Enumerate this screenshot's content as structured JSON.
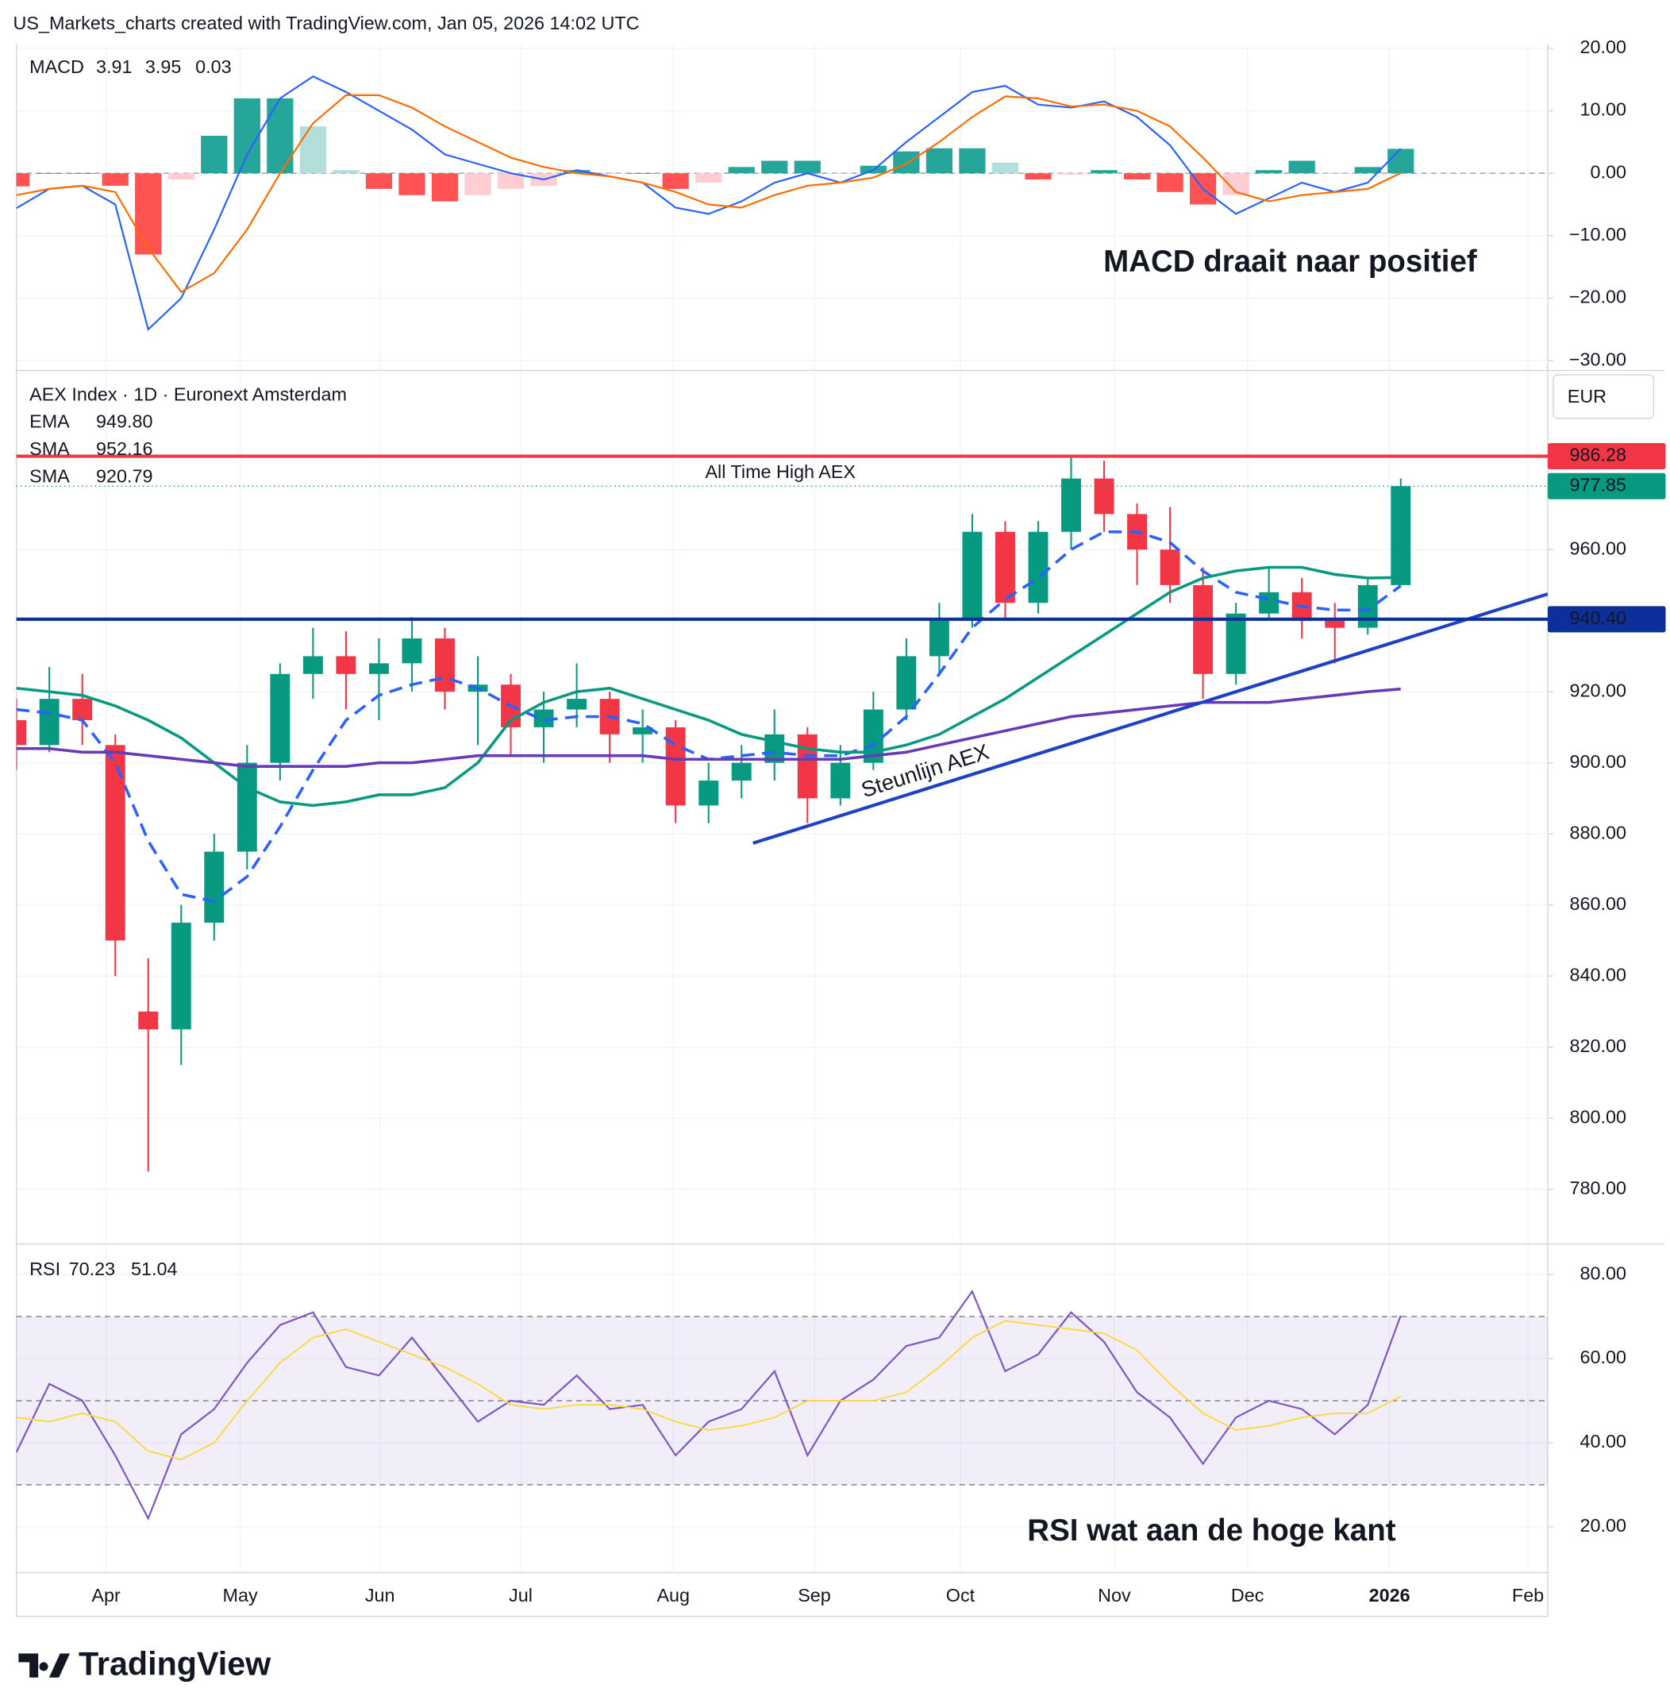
{
  "header": "US_Markets_charts created with TradingView.com, Jan 05, 2026 14:02 UTC",
  "logo": "TradingView",
  "chart_data": [
    {
      "type": "macd",
      "title": "MACD",
      "x": [
        0,
        1,
        2,
        3,
        4,
        5,
        6,
        7,
        8,
        9,
        10,
        11,
        12,
        13,
        14,
        15,
        16,
        17,
        18,
        19,
        20,
        21,
        22,
        23,
        24,
        25,
        26,
        27,
        28,
        29,
        30,
        31,
        32,
        33,
        34,
        35,
        36,
        37,
        38,
        39,
        40,
        41,
        42
      ],
      "xlim": [
        0,
        46.46
      ],
      "ylim": [
        -31.4,
        20.7
      ],
      "yticks": [
        {
          "value": 20,
          "label": "20.00"
        },
        {
          "value": 10,
          "label": "10.00"
        },
        {
          "value": 0,
          "label": "0.00"
        },
        {
          "value": -10,
          "label": "−10.00"
        },
        {
          "value": -20,
          "label": "−20.00"
        },
        {
          "value": -30,
          "label": "−30.00"
        }
      ],
      "baseline": 0,
      "histogram": {
        "values": [
          -2.1,
          0,
          0,
          -2,
          -13,
          -1,
          6,
          12,
          12,
          7.5,
          0.5,
          -2.5,
          -3.5,
          -4.5,
          -3.5,
          -2.5,
          -2,
          0.5,
          0,
          0,
          -2.5,
          -1.5,
          1,
          2,
          2,
          0,
          1.2,
          3.5,
          4,
          4,
          1.7,
          -1,
          -0.2,
          0.5,
          -1,
          -3,
          -5,
          -3.5,
          0.5,
          2,
          0,
          1,
          3.91
        ],
        "colors": [
          "#26a69a",
          "#b2dfdb",
          "#ff5252",
          "#ffcdd2"
        ]
      },
      "series": [
        {
          "color": "#2962ff",
          "values": [
            -5.6,
            -2.5,
            -2,
            -5,
            -25,
            -20,
            -9,
            3,
            12,
            15.5,
            13,
            10,
            7,
            3,
            1.5,
            0,
            -1,
            0.5,
            -0.5,
            -1.5,
            -5.5,
            -6.5,
            -4.5,
            -1.5,
            0,
            -1.5,
            0.5,
            5,
            9,
            13,
            14,
            11,
            10.5,
            11.5,
            9,
            4.5,
            -2.5,
            -6.5,
            -4,
            -1.5,
            -3,
            -1.5,
            3.95
          ]
        },
        {
          "color": "#ff6d00",
          "values": [
            -3.5,
            -2.5,
            -2,
            -3,
            -12,
            -19,
            -16,
            -9,
            0,
            8,
            12.5,
            12.5,
            10.5,
            7.5,
            5,
            2.5,
            1,
            0,
            -0.5,
            -1.5,
            -3,
            -5,
            -5.5,
            -3.5,
            -2,
            -1.5,
            -0.7,
            1.5,
            5,
            9,
            12.3,
            12,
            10.7,
            11,
            10,
            7.5,
            2.5,
            -3,
            -4.5,
            -3.5,
            -3,
            -2.5,
            0.03
          ]
        }
      ],
      "annotation": "MACD draait naar positief",
      "grid": true
    },
    {
      "type": "candlestick",
      "title": "AEX Index · 1D · Euronext Amsterdam",
      "currency": "EUR",
      "x": [
        0,
        1,
        2,
        3,
        4,
        5,
        6,
        7,
        8,
        9,
        10,
        11,
        12,
        13,
        14,
        15,
        16,
        17,
        18,
        19,
        20,
        21,
        22,
        23,
        24,
        25,
        26,
        27,
        28,
        29,
        30,
        31,
        32,
        33,
        34,
        35,
        36,
        37,
        38,
        39,
        40,
        41,
        42
      ],
      "xlim": [
        0,
        46.46
      ],
      "ylim": [
        764.9,
        1010.1
      ],
      "yticks": [
        {
          "value": 960,
          "label": "960.00"
        },
        {
          "value": 940,
          "label": "940.00"
        },
        {
          "value": 920,
          "label": "920.00"
        },
        {
          "value": 900,
          "label": "900.00"
        },
        {
          "value": 880,
          "label": "880.00"
        },
        {
          "value": 860,
          "label": "860.00"
        },
        {
          "value": 840,
          "label": "840.00"
        },
        {
          "value": 820,
          "label": "820.00"
        },
        {
          "value": 800,
          "label": "800.00"
        },
        {
          "value": 780,
          "label": "780.00"
        }
      ],
      "candles": {
        "open": [
          912,
          905,
          918,
          905,
          830,
          825,
          855,
          875,
          900,
          925,
          930,
          925,
          928,
          935,
          920,
          922,
          910,
          915,
          918,
          908,
          910,
          888,
          895,
          900,
          908,
          890,
          900,
          915,
          930,
          940,
          965,
          945,
          965,
          980,
          970,
          960,
          950,
          925,
          942,
          948,
          940,
          938,
          950
        ],
        "high": [
          918,
          927,
          925,
          908,
          845,
          860,
          880,
          905,
          928,
          938,
          937,
          935,
          941,
          938,
          930,
          925,
          920,
          928,
          920,
          915,
          912,
          900,
          905,
          915,
          910,
          905,
          920,
          935,
          945,
          970,
          968,
          968,
          986,
          985,
          973,
          972,
          955,
          945,
          955,
          952,
          945,
          952,
          980
        ],
        "low": [
          898,
          903,
          905,
          840,
          785,
          815,
          850,
          870,
          895,
          918,
          915,
          912,
          920,
          915,
          905,
          902,
          900,
          910,
          900,
          900,
          883,
          883,
          890,
          895,
          883,
          888,
          898,
          912,
          925,
          938,
          940,
          942,
          960,
          965,
          950,
          945,
          918,
          922,
          940,
          935,
          928,
          936,
          950
        ],
        "close": [
          905,
          918,
          912,
          850,
          825,
          855,
          875,
          900,
          925,
          930,
          925,
          928,
          935,
          920,
          922,
          910,
          915,
          918,
          908,
          910,
          888,
          895,
          900,
          908,
          890,
          900,
          915,
          930,
          940,
          965,
          945,
          965,
          980,
          970,
          960,
          950,
          925,
          942,
          948,
          940,
          938,
          950,
          977.85
        ],
        "up_color": "#089981",
        "down_color": "#f23645"
      },
      "series": [
        {
          "name": "EMA",
          "legend_value": "949.80",
          "color": "#2962ff",
          "dashed": true,
          "values": [
            915,
            914,
            912,
            900,
            878,
            863,
            861,
            868,
            882,
            898,
            912,
            919,
            922,
            924,
            921,
            916,
            912,
            913,
            913,
            911,
            905,
            901,
            902,
            903,
            902,
            902,
            905,
            913,
            925,
            938,
            946,
            952,
            960,
            965,
            965,
            962,
            954,
            948,
            946,
            944,
            943,
            943,
            949.8
          ]
        },
        {
          "name": "SMA",
          "color": "#089981",
          "dashed": false,
          "values": [
            921,
            920,
            919,
            916,
            912,
            907,
            900,
            893,
            889,
            888,
            889,
            891,
            891,
            893,
            900,
            912,
            917,
            920,
            921,
            918,
            915,
            912,
            908,
            906,
            904,
            903,
            903,
            905,
            908,
            913,
            918,
            924,
            930,
            936,
            942,
            948,
            952,
            954,
            955,
            955,
            953,
            952,
            952.16
          ]
        },
        {
          "name": "SMA",
          "color": "#673ab7",
          "dashed": false,
          "values": [
            904,
            904,
            903,
            903,
            902,
            901,
            900,
            899,
            899,
            899,
            899,
            900,
            900,
            901,
            902,
            902,
            902,
            902,
            902,
            902,
            901,
            901,
            901,
            901,
            901,
            901,
            902,
            903,
            905,
            907,
            909,
            911,
            913,
            914,
            915,
            916,
            917,
            917,
            917,
            918,
            919,
            920,
            920.79
          ]
        }
      ],
      "levels": [
        {
          "value": 986.28,
          "color": "#f23645"
        },
        {
          "value": 940.4,
          "label": "940.40",
          "color": "#0c2f9a"
        }
      ],
      "last_price": 977.85,
      "annotation": "All Time High AEX",
      "trendline": {
        "label": "Steunlijn AEX",
        "color": "#1e40c8",
        "x": [
          22.35,
          46.46
        ],
        "y": [
          877.4,
          947.5
        ]
      },
      "grid": true
    },
    {
      "type": "line",
      "title": "RSI",
      "x": [
        0,
        1,
        2,
        3,
        4,
        5,
        6,
        7,
        8,
        9,
        10,
        11,
        12,
        13,
        14,
        15,
        16,
        17,
        18,
        19,
        20,
        21,
        22,
        23,
        24,
        25,
        26,
        27,
        28,
        29,
        30,
        31,
        32,
        33,
        34,
        35,
        36,
        37,
        38,
        39,
        40,
        41,
        42
      ],
      "xlim": [
        0,
        46.46
      ],
      "xticks": [
        {
          "value": 2.72,
          "label": "Apr"
        },
        {
          "value": 6.79,
          "label": "May"
        },
        {
          "value": 11.03,
          "label": "Jun"
        },
        {
          "value": 15.3,
          "label": "Jul"
        },
        {
          "value": 19.93,
          "label": "Aug"
        },
        {
          "value": 24.21,
          "label": "Sep"
        },
        {
          "value": 28.64,
          "label": "Oct"
        },
        {
          "value": 33.31,
          "label": "Nov"
        },
        {
          "value": 37.35,
          "label": "Dec"
        },
        {
          "value": 41.66,
          "label": "2026"
        },
        {
          "value": 45.86,
          "label": "Feb"
        }
      ],
      "ylim": [
        9.1,
        87
      ],
      "yticks": [
        {
          "value": 80,
          "label": "80.00"
        },
        {
          "value": 60,
          "label": "60.00"
        },
        {
          "value": 40,
          "label": "40.00"
        },
        {
          "value": 20,
          "label": "20.00"
        }
      ],
      "levels": [
        70,
        50,
        30
      ],
      "band_color": "#7e57c2",
      "series": [
        {
          "color": "#7e57c2",
          "values": [
            37.7,
            54,
            50,
            37,
            22,
            42,
            48,
            59,
            68,
            71,
            58,
            56,
            65,
            55,
            45,
            50,
            49,
            56,
            48,
            49,
            37,
            45,
            48,
            57,
            37,
            50,
            55,
            63,
            65,
            76,
            57,
            61,
            71,
            64,
            52,
            46,
            35,
            46,
            50,
            48,
            42,
            49,
            70.23
          ]
        },
        {
          "color": "#fdd835",
          "values": [
            46,
            45,
            47,
            45,
            38,
            36,
            40,
            50,
            59,
            65,
            67,
            64,
            61,
            58,
            54,
            49,
            48,
            49,
            49,
            48,
            45,
            43,
            44,
            46,
            50,
            50,
            50,
            52,
            58,
            65,
            69,
            68,
            67,
            66,
            62,
            54,
            47,
            43,
            44,
            46,
            47,
            47,
            51.04
          ]
        }
      ],
      "annotation": "RSI wat aan de hoge kant",
      "grid": true
    }
  ]
}
